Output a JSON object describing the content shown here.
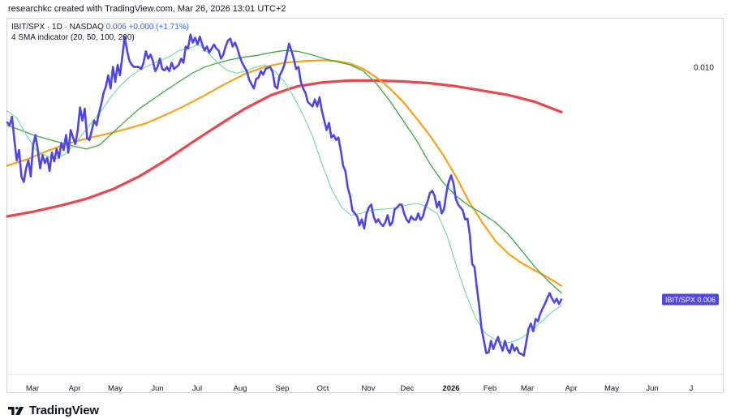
{
  "header": {
    "text": "researchkc created with TradingView.com, Mar 26, 2026 13:01 UTC+2"
  },
  "legend": {
    "symbol": "IBIT/SPX · 1D · NASDAQ",
    "value": "0.006",
    "change": "+0.000 (+1.71%)",
    "indicator": "4 SMA indicator (20, 50, 100, 200)"
  },
  "footer": {
    "brand": "TradingView"
  },
  "colors": {
    "price": "#5046e5",
    "sma20": "#69dba0",
    "sma50": "#3fa843",
    "sma100": "#f7a21c",
    "sma200": "#e8474c",
    "axis_label": "#131722",
    "badge": "#5046e5"
  },
  "chart_data": {
    "type": "line",
    "title": "",
    "xlabel": "",
    "ylabel": "",
    "x_ticks": [
      "Mar",
      "Apr",
      "May",
      "Jun",
      "Jul",
      "Aug",
      "Sep",
      "Oct",
      "Nov",
      "Dec",
      "2026",
      "Feb",
      "Mar",
      "Apr",
      "May",
      "Jun",
      "J"
    ],
    "y_ticks": [
      "0.010"
    ],
    "ylim": [
      0.0048,
      0.0112
    ],
    "y_scale": "log",
    "grid": false,
    "last_value_badge": {
      "label": "IBIT/SPX",
      "value": "0.006"
    },
    "series": [
      {
        "key": "price",
        "values": [
          0.00876,
          0.0087,
          0.00888,
          0.0084,
          0.008,
          0.0082,
          0.0077,
          0.0076,
          0.00785,
          0.008,
          0.0077,
          0.0083,
          0.0085,
          0.0082,
          0.00785,
          0.0081,
          0.00795,
          0.00805,
          0.0078,
          0.00815,
          0.00798,
          0.00822,
          0.00805,
          0.00834,
          0.0082,
          0.0085,
          0.00815,
          0.0086,
          0.00845,
          0.00832,
          0.0086,
          0.00908,
          0.0088,
          0.00905,
          0.00843,
          0.0084,
          0.0086,
          0.0088,
          0.0087,
          0.00895,
          0.00915,
          0.0094,
          0.00955,
          0.0098,
          0.0095,
          0.01,
          0.00965,
          0.01005,
          0.0098,
          0.01025,
          0.01075,
          0.0104,
          0.01015,
          0.01005,
          0.01,
          0.01,
          0.01,
          0.00995,
          0.0101,
          0.01038,
          0.0102,
          0.0103,
          0.01015,
          0.0099,
          0.01,
          0.0102,
          0.00995,
          0.00992,
          0.01,
          0.0099,
          0.0101,
          0.00995,
          0.01,
          0.01005,
          0.0102,
          0.0101,
          0.0105,
          0.01045,
          0.0108,
          0.0106,
          0.01072,
          0.01055,
          0.01075,
          0.01055,
          0.0104,
          0.0105,
          0.01035,
          0.01045,
          0.01055,
          0.01045,
          0.0104,
          0.0102,
          0.0103,
          0.0105,
          0.01065,
          0.0107,
          0.0105,
          0.0106,
          0.01045,
          0.01025,
          0.0101,
          0.01,
          0.0099,
          0.0097,
          0.0096,
          0.0095,
          0.00972,
          0.00975,
          0.0099,
          0.00982,
          0.00995,
          0.00998,
          0.01,
          0.00988,
          0.00955,
          0.0095,
          0.0098,
          0.0099,
          0.01005,
          0.0103,
          0.01057,
          0.0104,
          0.0102,
          0.00995,
          0.01,
          0.00965,
          0.0095,
          0.0094,
          0.0092,
          0.00915,
          0.0091,
          0.00925,
          0.0091,
          0.0093,
          0.009,
          0.0088,
          0.0086,
          0.00875,
          0.00845,
          0.0085,
          0.0084,
          0.00845,
          0.0082,
          0.0079,
          0.0078,
          0.0075,
          0.00735,
          0.0071,
          0.00705,
          0.007,
          0.00685,
          0.00695,
          0.0068,
          0.00705,
          0.00715,
          0.0072,
          0.007,
          0.0069,
          0.00695,
          0.00688,
          0.00684,
          0.0069,
          0.00702,
          0.00685,
          0.0069,
          0.00712,
          0.00715,
          0.0072,
          0.0072,
          0.00705,
          0.00695,
          0.0069,
          0.007,
          0.00695,
          0.00694,
          0.00705,
          0.00694,
          0.007,
          0.00715,
          0.00725,
          0.0074,
          0.00744,
          0.00735,
          0.00715,
          0.00725,
          0.00705,
          0.00712,
          0.0074,
          0.0076,
          0.00772,
          0.00758,
          0.0073,
          0.0072,
          0.00715,
          0.0071,
          0.00695,
          0.00696,
          0.0067,
          0.00625,
          0.0062,
          0.0059,
          0.00565,
          0.00535,
          0.0052,
          0.00505,
          0.00506,
          0.0052,
          0.0051,
          0.00518,
          0.00525,
          0.00515,
          0.00508,
          0.0052,
          0.0051,
          0.00505,
          0.00516,
          0.00508,
          0.00512,
          0.00505,
          0.00504,
          0.00502,
          0.00518,
          0.00535,
          0.00542,
          0.00532,
          0.00548,
          0.00545,
          0.00555,
          0.00562,
          0.00568,
          0.00576,
          0.00583,
          0.00575,
          0.0057,
          0.00575,
          0.00568,
          0.00574
        ]
      },
      {
        "key": "sma20",
        "values": [
          [
            0,
            0.009
          ],
          [
            10,
            0.00885
          ],
          [
            20,
            0.0085
          ],
          [
            30,
            0.0082
          ],
          [
            40,
            0.0081
          ],
          [
            50,
            0.00802
          ],
          [
            60,
            0.00812
          ],
          [
            70,
            0.0083
          ],
          [
            80,
            0.00855
          ],
          [
            90,
            0.0088
          ],
          [
            100,
            0.00905
          ],
          [
            110,
            0.00935
          ],
          [
            120,
            0.0096
          ],
          [
            130,
            0.0098
          ],
          [
            140,
            0.00995
          ],
          [
            150,
            0.01005
          ],
          [
            160,
            0.01015
          ],
          [
            170,
            0.01025
          ],
          [
            180,
            0.0104
          ],
          [
            190,
            0.01045
          ],
          [
            200,
            0.01055
          ],
          [
            210,
            0.01035
          ],
          [
            220,
            0.0101
          ],
          [
            230,
            0.00992
          ],
          [
            240,
            0.00985
          ],
          [
            250,
            0.0099
          ],
          [
            260,
            0.01
          ],
          [
            270,
            0.01005
          ],
          [
            280,
            0.0099
          ],
          [
            290,
            0.00965
          ],
          [
            300,
            0.0093
          ],
          [
            310,
            0.0089
          ],
          [
            320,
            0.00845
          ],
          [
            330,
            0.0079
          ],
          [
            340,
            0.00745
          ],
          [
            350,
            0.00715
          ],
          [
            360,
            0.00702
          ],
          [
            370,
            0.00705
          ],
          [
            380,
            0.0071
          ],
          [
            390,
            0.00712
          ],
          [
            400,
            0.00713
          ],
          [
            410,
            0.00715
          ],
          [
            420,
            0.0072
          ],
          [
            430,
            0.00722
          ],
          [
            440,
            0.00715
          ],
          [
            450,
            0.00705
          ],
          [
            460,
            0.0067
          ],
          [
            470,
            0.00622
          ],
          [
            480,
            0.00582
          ],
          [
            490,
            0.0055
          ],
          [
            500,
            0.0053
          ],
          [
            510,
            0.00522
          ],
          [
            520,
            0.00517
          ],
          [
            530,
            0.00519
          ],
          [
            540,
            0.00525
          ],
          [
            550,
            0.00535
          ],
          [
            560,
            0.00545
          ],
          [
            570,
            0.00557
          ],
          [
            580,
            0.00566
          ]
        ]
      },
      {
        "key": "sma50",
        "values": [
          [
            0,
            0.0087
          ],
          [
            20,
            0.0086
          ],
          [
            40,
            0.0085
          ],
          [
            60,
            0.00842
          ],
          [
            80,
            0.00835
          ],
          [
            100,
            0.00828
          ],
          [
            120,
            0.00822
          ],
          [
            140,
            0.0083
          ],
          [
            160,
            0.00855
          ],
          [
            180,
            0.0088
          ],
          [
            200,
            0.00905
          ],
          [
            220,
            0.00925
          ],
          [
            240,
            0.00945
          ],
          [
            260,
            0.00965
          ],
          [
            280,
            0.00985
          ],
          [
            300,
            0.01
          ],
          [
            320,
            0.0101
          ],
          [
            340,
            0.01018
          ],
          [
            360,
            0.01024
          ],
          [
            380,
            0.01028
          ],
          [
            400,
            0.01035
          ],
          [
            420,
            0.0104
          ],
          [
            440,
            0.01038
          ],
          [
            460,
            0.0103
          ],
          [
            480,
            0.0102
          ],
          [
            500,
            0.01012
          ],
          [
            520,
            0.01005
          ],
          [
            540,
            0.0099
          ],
          [
            560,
            0.0096
          ],
          [
            580,
            0.00922
          ],
          [
            600,
            0.0088
          ],
          [
            620,
            0.0084
          ],
          [
            640,
            0.00795
          ],
          [
            660,
            0.0076
          ],
          [
            680,
            0.00735
          ],
          [
            700,
            0.00718
          ],
          [
            720,
            0.00705
          ],
          [
            740,
            0.0069
          ],
          [
            760,
            0.0067
          ],
          [
            780,
            0.00645
          ],
          [
            800,
            0.0062
          ],
          [
            820,
            0.006
          ],
          [
            840,
            0.00583
          ]
        ]
      },
      {
        "key": "sma100",
        "values": [
          [
            0,
            0.0079
          ],
          [
            30,
            0.00802
          ],
          [
            60,
            0.00818
          ],
          [
            90,
            0.00832
          ],
          [
            120,
            0.00843
          ],
          [
            150,
            0.00852
          ],
          [
            180,
            0.00862
          ],
          [
            210,
            0.00874
          ],
          [
            240,
            0.00892
          ],
          [
            270,
            0.00912
          ],
          [
            300,
            0.00935
          ],
          [
            330,
            0.0096
          ],
          [
            360,
            0.00983
          ],
          [
            390,
            0.01
          ],
          [
            420,
            0.0101
          ],
          [
            450,
            0.01014
          ],
          [
            480,
            0.01016
          ],
          [
            500,
            0.01014
          ],
          [
            520,
            0.01008
          ],
          [
            540,
            0.00995
          ],
          [
            560,
            0.00975
          ],
          [
            580,
            0.0095
          ],
          [
            600,
            0.0092
          ],
          [
            620,
            0.00885
          ],
          [
            640,
            0.0085
          ],
          [
            660,
            0.00812
          ],
          [
            680,
            0.0077
          ],
          [
            700,
            0.00725
          ],
          [
            720,
            0.0069
          ],
          [
            740,
            0.0066
          ],
          [
            760,
            0.0064
          ],
          [
            780,
            0.00626
          ],
          [
            800,
            0.00615
          ],
          [
            820,
            0.00605
          ],
          [
            840,
            0.00593
          ]
        ]
      },
      {
        "key": "sma200",
        "values": [
          [
            0,
            0.007
          ],
          [
            40,
            0.00708
          ],
          [
            80,
            0.00718
          ],
          [
            120,
            0.0073
          ],
          [
            160,
            0.00747
          ],
          [
            200,
            0.0077
          ],
          [
            240,
            0.008
          ],
          [
            280,
            0.00835
          ],
          [
            320,
            0.0087
          ],
          [
            360,
            0.00905
          ],
          [
            400,
            0.00935
          ],
          [
            440,
            0.00955
          ],
          [
            480,
            0.00964
          ],
          [
            520,
            0.00968
          ],
          [
            560,
            0.00968
          ],
          [
            600,
            0.00966
          ],
          [
            640,
            0.00962
          ],
          [
            680,
            0.00955
          ],
          [
            720,
            0.00945
          ],
          [
            760,
            0.00935
          ],
          [
            800,
            0.0092
          ],
          [
            840,
            0.00898
          ]
        ]
      }
    ]
  }
}
